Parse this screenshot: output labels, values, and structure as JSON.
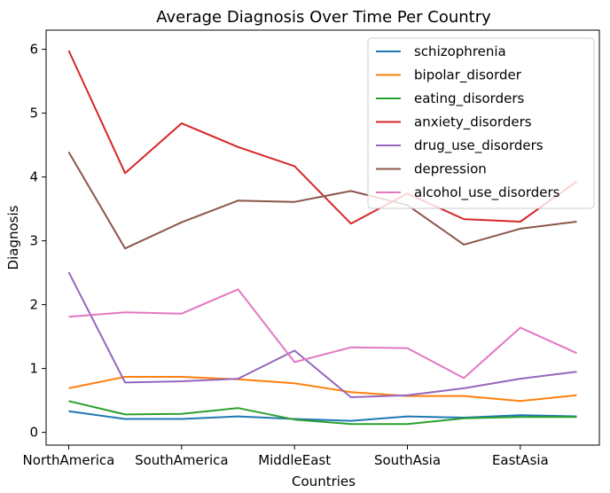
{
  "chart_data": {
    "type": "line",
    "title": "Average Diagnosis Over Time Per Country",
    "xlabel": "Countries",
    "ylabel": "Diagnosis",
    "x_tick_labels": [
      "NorthAmerica",
      "SouthAmerica",
      "MiddleEast",
      "SouthAsia",
      "EastAsia"
    ],
    "y_ticks": [
      0,
      1,
      2,
      3,
      4,
      5,
      6
    ],
    "ylim": [
      -0.2,
      6.3
    ],
    "xlim": [
      -0.4,
      9.4
    ],
    "x": [
      0,
      1,
      2,
      3,
      4,
      5,
      6,
      7,
      8,
      9
    ],
    "grid": false,
    "legend_position": "top-right",
    "series": [
      {
        "name": "schizophrenia",
        "color": "#1f77b4",
        "values": [
          0.33,
          0.21,
          0.21,
          0.25,
          0.21,
          0.18,
          0.25,
          0.23,
          0.27,
          0.25
        ]
      },
      {
        "name": "bipolar_disorder",
        "color": "#ff7f0e",
        "values": [
          0.69,
          0.87,
          0.87,
          0.83,
          0.77,
          0.63,
          0.57,
          0.57,
          0.49,
          0.58
        ]
      },
      {
        "name": "eating_disorders",
        "color": "#2ca02c",
        "values": [
          0.49,
          0.28,
          0.29,
          0.38,
          0.2,
          0.13,
          0.13,
          0.22,
          0.24,
          0.24
        ]
      },
      {
        "name": "anxiety_disorders",
        "color": "#d62728",
        "values": [
          5.98,
          4.06,
          4.84,
          4.47,
          4.17,
          3.27,
          3.74,
          3.34,
          3.3,
          3.93
        ]
      },
      {
        "name": "drug_use_disorders",
        "color": "#9467bd",
        "values": [
          2.51,
          0.78,
          0.8,
          0.84,
          1.28,
          0.55,
          0.58,
          0.69,
          0.84,
          0.95
        ]
      },
      {
        "name": "depression",
        "color": "#8c564b",
        "values": [
          4.39,
          2.88,
          3.29,
          3.63,
          3.61,
          3.78,
          3.56,
          2.94,
          3.19,
          3.3
        ]
      },
      {
        "name": "alcohol_use_disorders",
        "color": "#e377c2",
        "values": [
          1.81,
          1.88,
          1.86,
          2.24,
          1.1,
          1.33,
          1.32,
          0.85,
          1.64,
          1.24
        ]
      }
    ]
  }
}
